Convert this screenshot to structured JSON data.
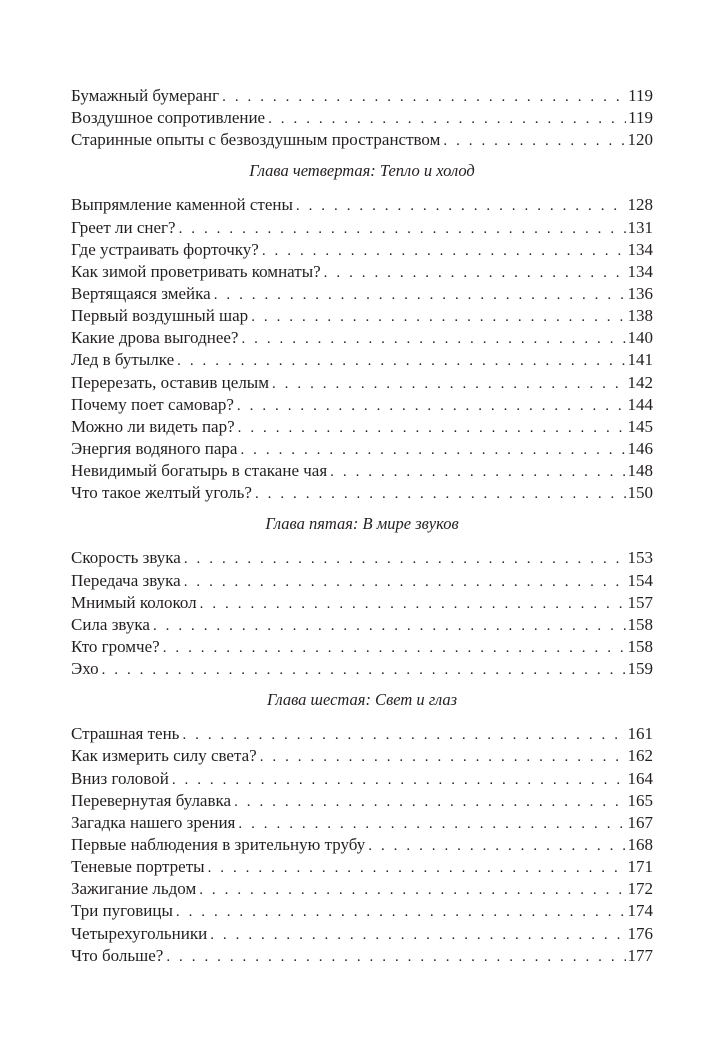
{
  "sections": [
    {
      "heading": "",
      "entries": [
        {
          "title": "Бумажный бумеранг",
          "page": "119"
        },
        {
          "title": "Воздушное сопротивление",
          "page": "119"
        },
        {
          "title": "Старинные опыты с безвоздушным пространством",
          "page": "120"
        }
      ]
    },
    {
      "heading": "Глава четвертая: Тепло и холод",
      "entries": [
        {
          "title": "Выпрямление каменной стены",
          "page": "128"
        },
        {
          "title": "Греет ли снег?",
          "page": "131"
        },
        {
          "title": "Где устраивать форточку?",
          "page": "134"
        },
        {
          "title": "Как зимой проветривать комнаты?",
          "page": "134"
        },
        {
          "title": "Вертящаяся змейка",
          "page": "136"
        },
        {
          "title": "Первый воздушный шар",
          "page": "138"
        },
        {
          "title": "Какие дрова выгоднее?",
          "page": "140"
        },
        {
          "title": "Лед в бутылке",
          "page": "141"
        },
        {
          "title": "Перерезать, оставив целым",
          "page": "142"
        },
        {
          "title": "Почему поет самовар?",
          "page": "144"
        },
        {
          "title": "Можно ли видеть пар?",
          "page": "145"
        },
        {
          "title": "Энергия водяного пара",
          "page": "146"
        },
        {
          "title": "Невидимый богатырь в стакане чая",
          "page": "148"
        },
        {
          "title": "Что такое желтый уголь?",
          "page": "150"
        }
      ]
    },
    {
      "heading": "Глава пятая: В мире звуков",
      "entries": [
        {
          "title": "Скорость звука",
          "page": "153"
        },
        {
          "title": "Передача звука",
          "page": "154"
        },
        {
          "title": "Мнимый колокол",
          "page": "157"
        },
        {
          "title": "Сила звука",
          "page": "158"
        },
        {
          "title": "Кто громче?",
          "page": "158"
        },
        {
          "title": "Эхо",
          "page": "159"
        }
      ]
    },
    {
      "heading": "Глава шестая: Свет и глаз",
      "entries": [
        {
          "title": "Страшная тень",
          "page": "161"
        },
        {
          "title": "Как измерить силу света?",
          "page": "162"
        },
        {
          "title": "Вниз головой",
          "page": "164"
        },
        {
          "title": "Перевернутая булавка",
          "page": "165"
        },
        {
          "title": "Загадка нашего зрения",
          "page": "167"
        },
        {
          "title": "Первые наблюдения в зрительную трубу",
          "page": "168"
        },
        {
          "title": "Теневые портреты",
          "page": "171"
        },
        {
          "title": "Зажигание льдом",
          "page": "172"
        },
        {
          "title": "Три пуговицы",
          "page": "174"
        },
        {
          "title": "Четырехугольники",
          "page": "176"
        },
        {
          "title": "Что больше?",
          "page": "177"
        }
      ]
    }
  ]
}
